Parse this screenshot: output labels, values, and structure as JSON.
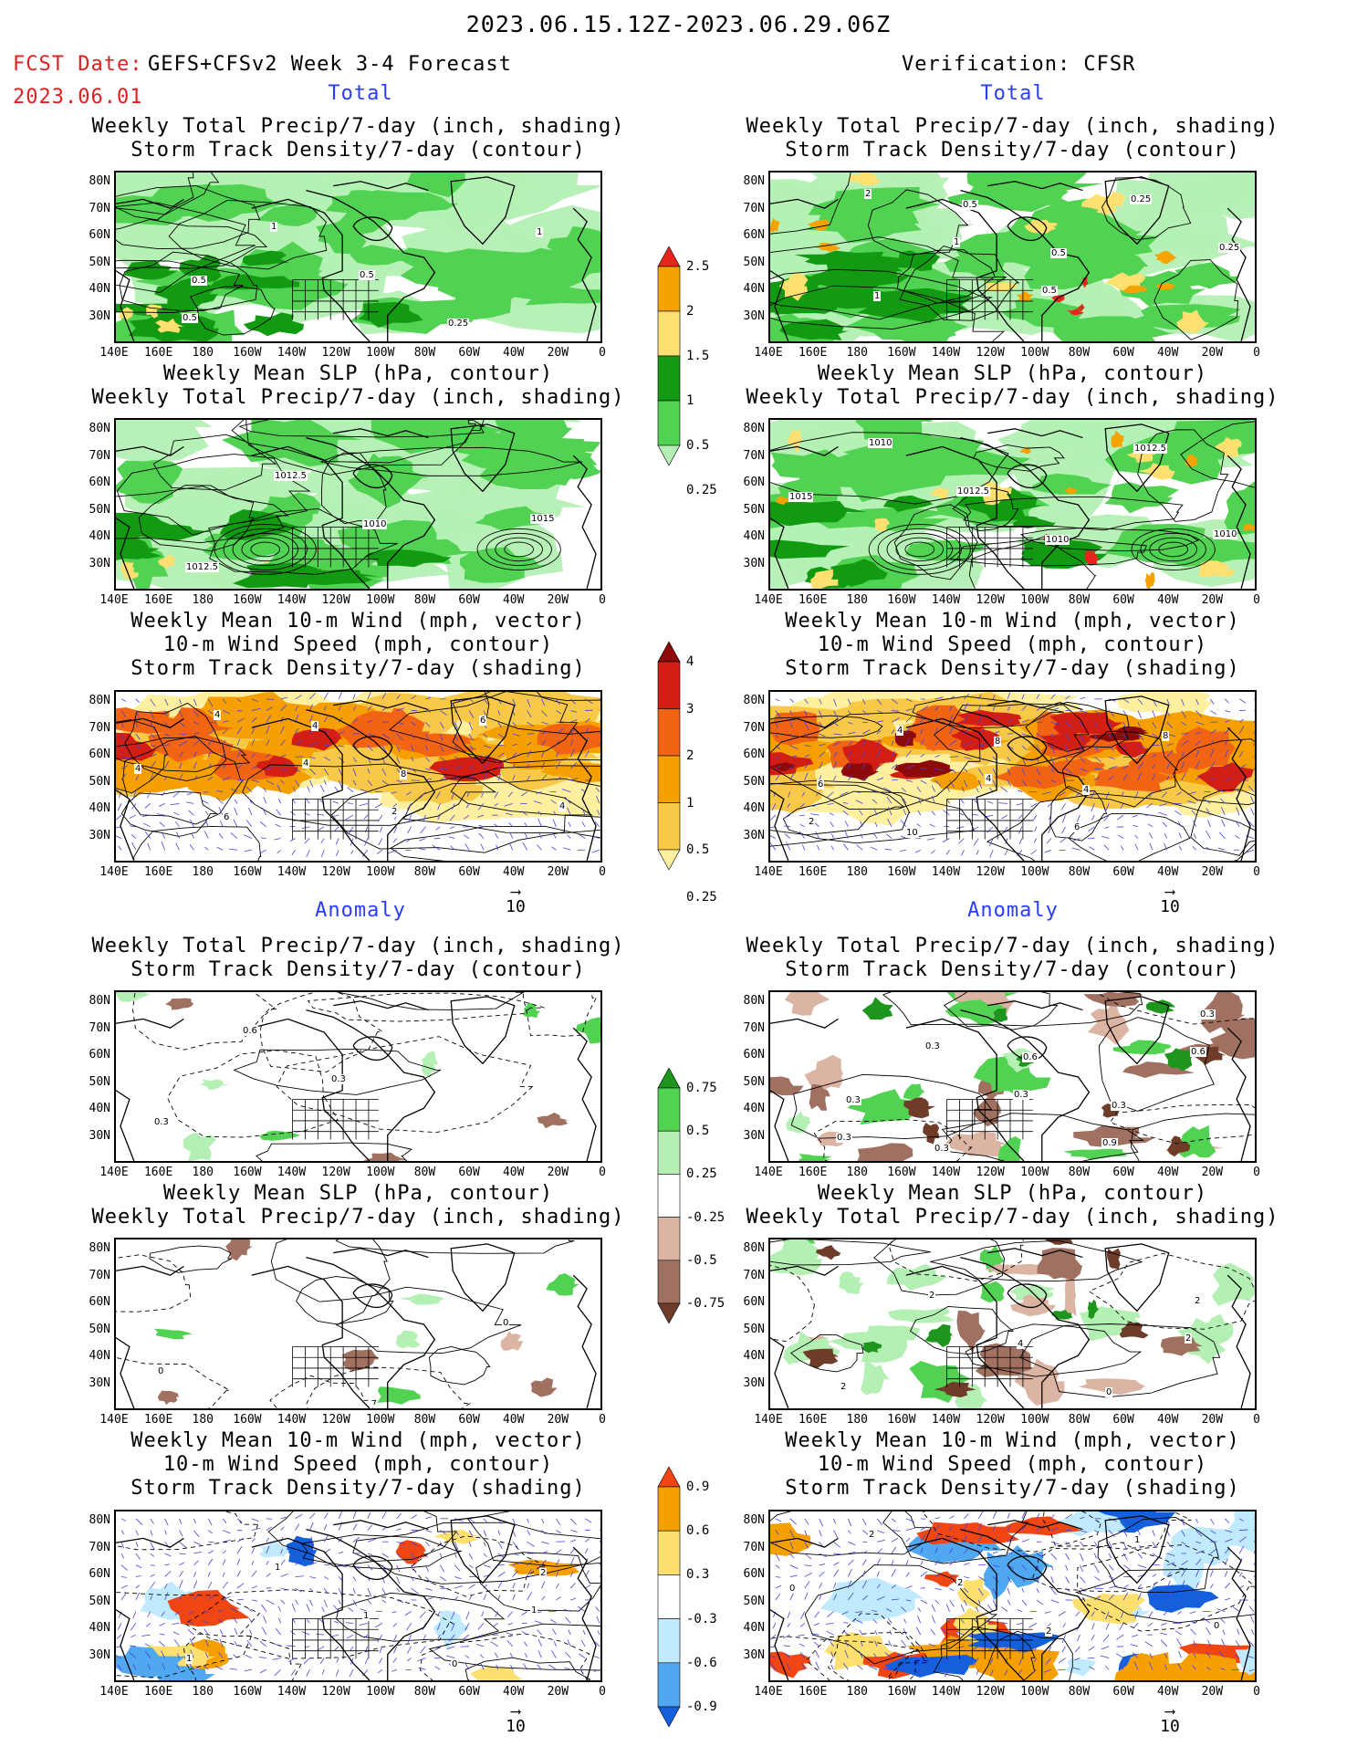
{
  "header": {
    "period": "2023.06.15.12Z-2023.06.29.06Z",
    "fcst_date_label": "FCST Date:",
    "fcst_model": "GEFS+CFSv2 Week 3-4 Forecast",
    "fcst_date": "2023.06.01",
    "verification": "Verification: CFSR"
  },
  "sections": {
    "total": "Total",
    "anomaly": "Anomaly"
  },
  "titles": {
    "precip_std_1": "Weekly Total Precip/7-day (inch, shading)",
    "precip_std_2": "Storm Track Density/7-day (contour)",
    "slp_1": "Weekly Mean SLP (hPa, contour)",
    "slp_2": "Weekly Total Precip/7-day (inch, shading)",
    "wind_1": "Weekly Mean 10-m Wind (mph, vector)",
    "wind_2": "10-m Wind Speed (mph, contour)",
    "wind_3": "Storm Track Density/7-day (shading)"
  },
  "axes": {
    "lat_ticks": [
      "80N",
      "70N",
      "60N",
      "50N",
      "40N",
      "30N"
    ],
    "lon_ticks": [
      "140E",
      "160E",
      "180",
      "160W",
      "140W",
      "120W",
      "100W",
      "80W",
      "60W",
      "40W",
      "20W",
      "0"
    ]
  },
  "vector_ref": "10",
  "colorbars": {
    "total_precip": {
      "labels": [
        "2.5",
        "2",
        "1.5",
        "1",
        "0.5",
        "0.25"
      ],
      "colors": [
        "#e8241e",
        "#f5a300",
        "#ffe070",
        "#129a12",
        "#52d252",
        "#b4f0b4"
      ]
    },
    "total_std": {
      "labels": [
        "4",
        "3",
        "2",
        "1",
        "0.5",
        "0.25"
      ],
      "colors": [
        "#8c0a0a",
        "#d21e14",
        "#f06414",
        "#f5a000",
        "#f8c848",
        "#fff0a0"
      ]
    },
    "anom_precip": {
      "labels": [
        "0.75",
        "0.5",
        "0.25",
        "-0.25",
        "-0.5",
        "-0.75"
      ],
      "colors": [
        "#1e961e",
        "#52d252",
        "#b4f0b4",
        "#ffffff",
        "#dcb4a4",
        "#a07060",
        "#6e3c28"
      ]
    },
    "anom_std": {
      "labels": [
        "0.9",
        "0.6",
        "0.3",
        "-0.3",
        "-0.6",
        "-0.9"
      ],
      "colors": [
        "#f04614",
        "#f5a000",
        "#fde070",
        "#ffffff",
        "#c0eaff",
        "#50a8f0",
        "#1460dc"
      ]
    }
  },
  "contour_labels": {
    "fcst_total_precip": [
      "0.5",
      "1",
      "0.5",
      "0.25",
      "1",
      "0.5"
    ],
    "verif_total_precip": [
      "2",
      "1",
      "0.5",
      "0.25",
      "0.25",
      "1",
      "0.5",
      "0.5"
    ],
    "fcst_total_slp": [
      "1015",
      "1012.5",
      "1012.5",
      "1010"
    ],
    "verif_total_slp": [
      "1010",
      "1010",
      "1012.5",
      "1010",
      "1012.5",
      "1015"
    ],
    "fcst_total_wind": [
      "4",
      "4",
      "4",
      "2",
      "6",
      "4",
      "6",
      "4",
      "8"
    ],
    "verif_total_wind": [
      "2",
      "4",
      "4",
      "6",
      "8",
      "6",
      "10",
      "8",
      "4"
    ],
    "fcst_anom_precip": [
      "0.3",
      "0.6",
      "0.3"
    ],
    "verif_anom_precip": [
      "0.3",
      "0.3",
      "0.3",
      "0.9",
      "0.6",
      "0.3",
      "0.3",
      "0.6",
      "0.3",
      "0.3"
    ],
    "fcst_anom_slp": [
      "0",
      "0"
    ],
    "verif_anom_slp": [
      "2",
      "2",
      "2",
      "4",
      "0",
      "2"
    ],
    "fcst_anom_wind": [
      "1",
      "1",
      "1",
      "1",
      "0",
      "2"
    ],
    "verif_anom_wind": [
      "0",
      "2",
      "2",
      "2",
      "1",
      "0"
    ]
  }
}
